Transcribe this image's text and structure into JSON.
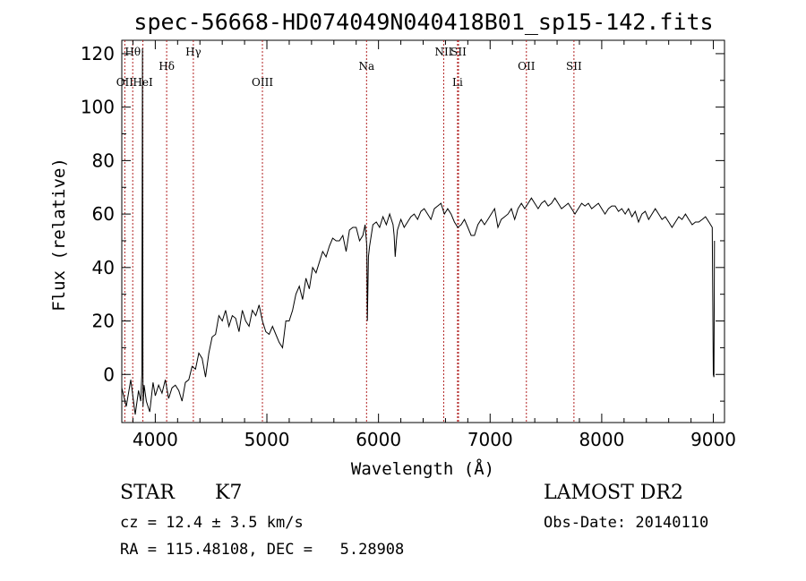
{
  "chart_data": {
    "type": "line",
    "title": "spec-56668-HD074049N040418B01_sp15-142.fits",
    "xlabel": "Wavelength (Å)",
    "ylabel": "Flux (relative)",
    "xlim": [
      3700,
      9100
    ],
    "ylim": [
      -18,
      125
    ],
    "xticks": [
      4000,
      5000,
      6000,
      7000,
      8000,
      9000
    ],
    "yticks": [
      0,
      20,
      40,
      60,
      80,
      100,
      120
    ],
    "grid": false,
    "line_color": "#000000",
    "marker_color": "#b22222",
    "series": [
      {
        "x": [
          3700,
          3740,
          3780,
          3820,
          3850,
          3870,
          3880,
          3885,
          3890,
          3900,
          3920,
          3950,
          3980,
          4000,
          4030,
          4060,
          4090,
          4120,
          4150,
          4180,
          4210,
          4240,
          4270,
          4300,
          4330,
          4360,
          4390,
          4420,
          4450,
          4480,
          4510,
          4540,
          4570,
          4600,
          4630,
          4660,
          4690,
          4720,
          4750,
          4780,
          4810,
          4840,
          4870,
          4900,
          4930,
          4960,
          4990,
          5020,
          5050,
          5080,
          5110,
          5140,
          5170,
          5200,
          5230,
          5260,
          5290,
          5320,
          5350,
          5380,
          5410,
          5440,
          5470,
          5500,
          5530,
          5560,
          5590,
          5620,
          5650,
          5680,
          5710,
          5740,
          5770,
          5800,
          5830,
          5860,
          5880,
          5895,
          5900,
          5910,
          5920,
          5950,
          5980,
          6010,
          6040,
          6070,
          6100,
          6130,
          6140,
          6150,
          6160,
          6170,
          6200,
          6230,
          6260,
          6290,
          6320,
          6350,
          6380,
          6410,
          6440,
          6470,
          6500,
          6530,
          6560,
          6590,
          6620,
          6650,
          6680,
          6710,
          6740,
          6770,
          6800,
          6830,
          6860,
          6890,
          6920,
          6950,
          6980,
          7010,
          7040,
          7070,
          7100,
          7130,
          7160,
          7190,
          7220,
          7250,
          7280,
          7310,
          7340,
          7370,
          7400,
          7430,
          7460,
          7490,
          7520,
          7550,
          7580,
          7610,
          7640,
          7670,
          7700,
          7730,
          7760,
          7790,
          7820,
          7850,
          7880,
          7910,
          7940,
          7970,
          8000,
          8030,
          8060,
          8090,
          8120,
          8150,
          8180,
          8210,
          8240,
          8270,
          8300,
          8330,
          8360,
          8390,
          8420,
          8450,
          8480,
          8510,
          8540,
          8570,
          8600,
          8630,
          8660,
          8690,
          8720,
          8750,
          8780,
          8810,
          8840,
          8870,
          8900,
          8930,
          8960,
          8990,
          9000,
          9005,
          9010
        ],
        "y": [
          -5,
          -12,
          -2,
          -15,
          -6,
          -10,
          0,
          122,
          -12,
          -4,
          -10,
          -14,
          -3,
          -8,
          -4,
          -7,
          -2,
          -9,
          -5,
          -4,
          -6,
          -10,
          -3,
          -2,
          3,
          2,
          8,
          6,
          -1,
          8,
          14,
          15,
          22,
          20,
          24,
          18,
          22,
          21,
          16,
          24,
          20,
          18,
          24,
          22,
          26,
          20,
          16,
          15,
          18,
          15,
          12,
          10,
          20,
          20,
          24,
          30,
          33,
          28,
          36,
          32,
          40,
          38,
          42,
          46,
          44,
          48,
          51,
          50,
          50,
          52,
          46,
          54,
          55,
          55,
          50,
          52,
          56,
          48,
          20,
          44,
          48,
          56,
          57,
          55,
          59,
          56,
          60,
          56,
          52,
          44,
          50,
          54,
          58,
          55,
          57,
          59,
          60,
          58,
          61,
          62,
          60,
          58,
          62,
          63,
          64,
          60,
          62,
          60,
          57,
          55,
          56,
          58,
          55,
          52,
          52,
          56,
          58,
          56,
          58,
          60,
          62,
          55,
          58,
          59,
          60,
          62,
          58,
          62,
          64,
          62,
          64,
          66,
          64,
          62,
          64,
          65,
          63,
          64,
          66,
          64,
          62,
          63,
          64,
          62,
          60,
          62,
          64,
          63,
          64,
          62,
          63,
          64,
          62,
          60,
          62,
          63,
          63,
          61,
          62,
          60,
          62,
          59,
          61,
          57,
          60,
          61,
          58,
          60,
          62,
          60,
          58,
          59,
          57,
          55,
          57,
          59,
          58,
          60,
          58,
          56,
          57,
          57,
          58,
          59,
          57,
          55,
          0,
          -1,
          50
        ]
      }
    ],
    "line_markers": [
      {
        "label": "Hθ",
        "x": 3798,
        "row": 1
      },
      {
        "label": "OII",
        "x": 3727,
        "row": 3
      },
      {
        "label": "HeI",
        "x": 3889,
        "row": 3
      },
      {
        "label": "Hδ",
        "x": 4102,
        "row": 2
      },
      {
        "label": "Hγ",
        "x": 4341,
        "row": 1
      },
      {
        "label": "OIII",
        "x": 4960,
        "row": 3
      },
      {
        "label": "Na",
        "x": 5893,
        "row": 2
      },
      {
        "label": "NII",
        "x": 6584,
        "row": 1
      },
      {
        "label": "SII",
        "x": 6717,
        "row": 1
      },
      {
        "label": "Li",
        "x": 6708,
        "row": 3
      },
      {
        "label": "OII",
        "x": 7325,
        "row": 2
      },
      {
        "label": "SII",
        "x": 7751,
        "row": 2
      }
    ]
  },
  "info": {
    "object_type": "STAR",
    "subclass": "K7",
    "survey": "LAMOST DR2",
    "cz": "cz = 12.4 ± 3.5 km/s",
    "obs_date": "Obs-Date: 20140110",
    "coords": "RA = 115.48108, DEC =   5.28908"
  }
}
